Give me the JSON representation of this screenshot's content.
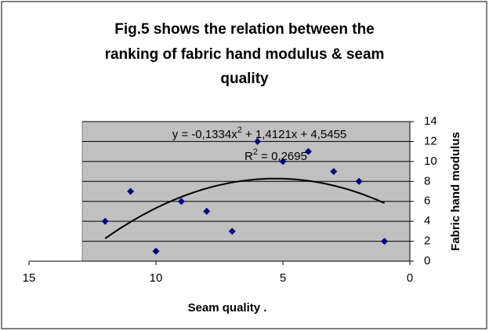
{
  "chart_data": {
    "type": "scatter",
    "title": [
      "Fig.5 shows the relation between the",
      "ranking of fabric hand modulus & seam",
      "quality"
    ],
    "x_label": "Seam quality .",
    "y_label": "Fabric hand modulus",
    "x": [
      12,
      11,
      10,
      9,
      8,
      7,
      6,
      5,
      4,
      3,
      2,
      1
    ],
    "values": [
      4,
      7,
      1,
      6,
      5,
      3,
      12,
      10,
      11,
      9,
      8,
      2
    ],
    "color": "#000080",
    "xlim": [
      15,
      0
    ],
    "xticks": [
      15,
      10,
      5,
      0
    ],
    "ylim": [
      0,
      14
    ],
    "yticks": [
      0,
      2,
      4,
      6,
      8,
      10,
      12,
      14
    ],
    "y_axis_side": "right",
    "grid": true,
    "plot_background": "#c0c0c0",
    "trendline": {
      "type": "polynomial",
      "coefficients": [
        -0.1334,
        1.4121,
        4.5455
      ],
      "equation": [
        "y = -0,1334x",
        "2",
        " + 1,4121x + 4,5455"
      ],
      "r2": [
        "R",
        "2",
        " = 0,2695"
      ]
    }
  }
}
